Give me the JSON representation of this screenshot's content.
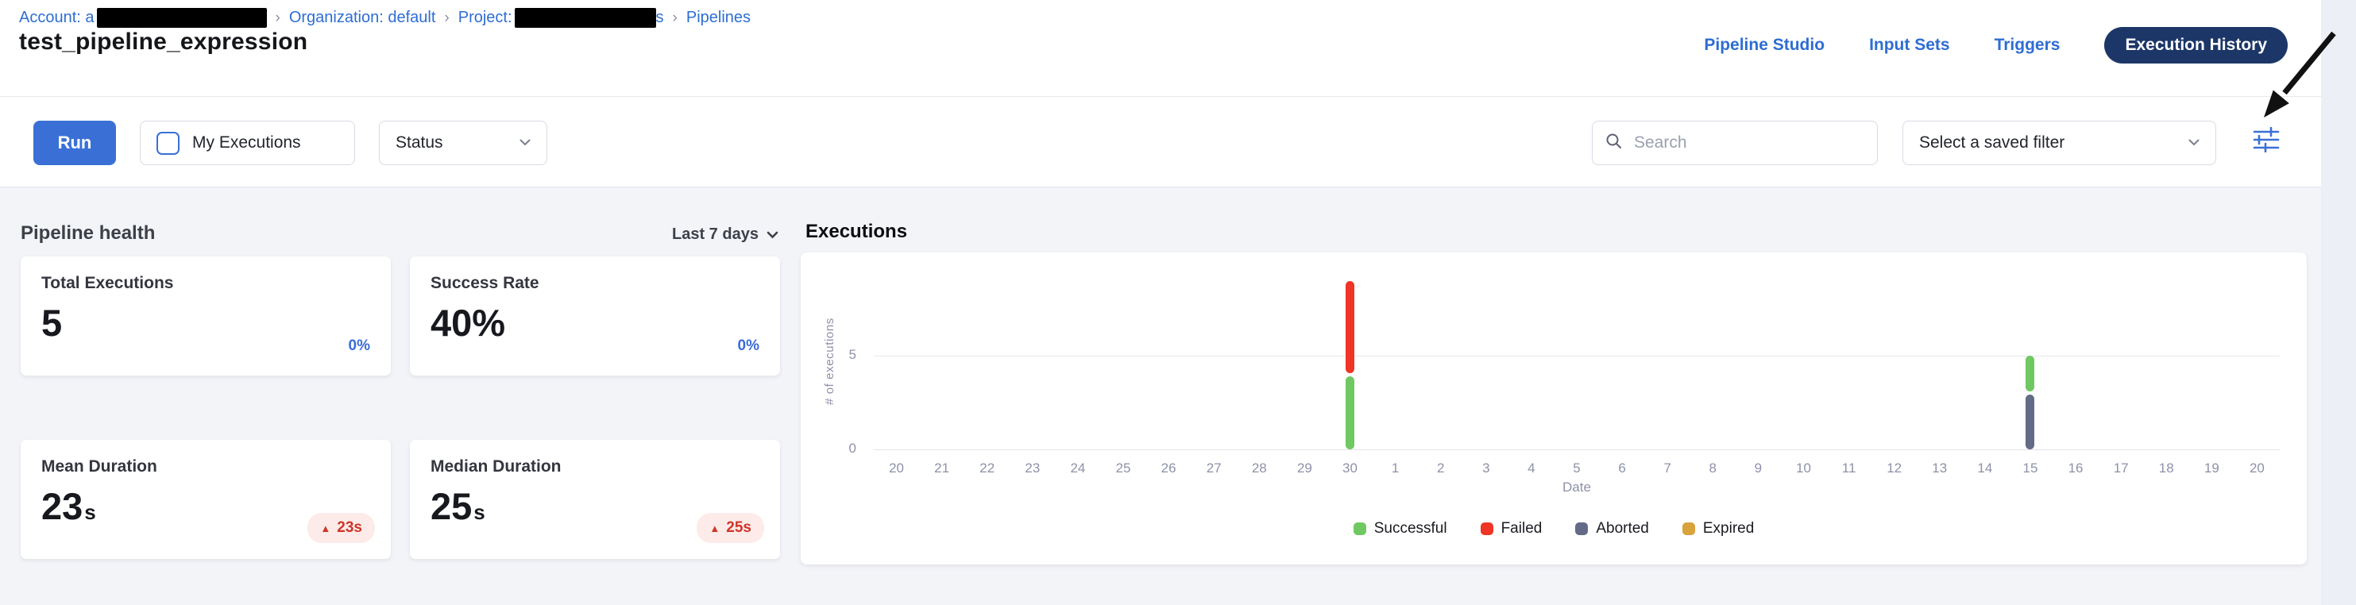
{
  "breadcrumb": {
    "separator": "›",
    "items": [
      {
        "label": "Account: a",
        "redacted_width": 214
      },
      {
        "label": "Organization: default"
      },
      {
        "label": "Project:",
        "redacted_width": 178,
        "redacted_suffix": "s"
      },
      {
        "label": "Pipelines"
      }
    ]
  },
  "header": {
    "title": "test_pipeline_expression",
    "nav": [
      {
        "label": "Pipeline Studio",
        "active": false
      },
      {
        "label": "Input Sets",
        "active": false
      },
      {
        "label": "Triggers",
        "active": false
      },
      {
        "label": "Execution History",
        "active": true
      }
    ]
  },
  "toolbar": {
    "run_label": "Run",
    "my_executions_label": "My Executions",
    "my_executions_checked": false,
    "status_label": "Status",
    "search_placeholder": "Search",
    "saved_filter_placeholder": "Select a saved filter"
  },
  "annotation": {
    "type": "hand-drawn-arrow",
    "color": "#111111",
    "points_to": "filter-sliders-button"
  },
  "pipeline_health": {
    "title": "Pipeline health",
    "range_label": "Last 7 days",
    "cards": [
      {
        "id": "total-executions",
        "label": "Total Executions",
        "value": "5",
        "suffix": "",
        "delta": "0%",
        "delta_style": "blue"
      },
      {
        "id": "success-rate",
        "label": "Success Rate",
        "value": "40%",
        "suffix": "",
        "delta": "0%",
        "delta_style": "blue"
      },
      {
        "id": "mean-duration",
        "label": "Mean Duration",
        "value": "23",
        "suffix": "s",
        "delta": "23s",
        "delta_style": "red-up-badge"
      },
      {
        "id": "median-duration",
        "label": "Median Duration",
        "value": "25",
        "suffix": "s",
        "delta": "25s",
        "delta_style": "red-up-badge"
      }
    ]
  },
  "executions_section": {
    "title": "Executions"
  },
  "chart_data": {
    "type": "bar",
    "stacked": true,
    "title": "Executions",
    "xlabel": "Date",
    "ylabel": "# of executions",
    "ylim": [
      0,
      9.6
    ],
    "yticks": [
      0,
      5
    ],
    "grid": "horizontal",
    "legend_position": "bottom-center",
    "categories": [
      "20",
      "21",
      "22",
      "23",
      "24",
      "25",
      "26",
      "27",
      "28",
      "29",
      "30",
      "1",
      "2",
      "3",
      "4",
      "5",
      "6",
      "7",
      "8",
      "9",
      "10",
      "11",
      "12",
      "13",
      "14",
      "15",
      "16",
      "17",
      "18",
      "19",
      "20"
    ],
    "series": [
      {
        "name": "Successful",
        "color": "#70c862",
        "values": [
          0,
          0,
          0,
          0,
          0,
          0,
          0,
          0,
          0,
          0,
          4,
          0,
          0,
          0,
          0,
          0,
          0,
          0,
          0,
          0,
          0,
          0,
          0,
          0,
          0,
          2,
          0,
          0,
          0,
          0,
          0
        ]
      },
      {
        "name": "Failed",
        "color": "#ee3526",
        "values": [
          0,
          0,
          0,
          0,
          0,
          0,
          0,
          0,
          0,
          0,
          5,
          0,
          0,
          0,
          0,
          0,
          0,
          0,
          0,
          0,
          0,
          0,
          0,
          0,
          0,
          0,
          0,
          0,
          0,
          0,
          0
        ]
      },
      {
        "name": "Aborted",
        "color": "#636b86",
        "values": [
          0,
          0,
          0,
          0,
          0,
          0,
          0,
          0,
          0,
          0,
          0,
          0,
          0,
          0,
          0,
          0,
          0,
          0,
          0,
          0,
          0,
          0,
          0,
          0,
          0,
          3,
          0,
          0,
          0,
          0,
          0
        ]
      },
      {
        "name": "Expired",
        "color": "#d9a23b",
        "values": [
          0,
          0,
          0,
          0,
          0,
          0,
          0,
          0,
          0,
          0,
          0,
          0,
          0,
          0,
          0,
          0,
          0,
          0,
          0,
          0,
          0,
          0,
          0,
          0,
          0,
          0,
          0,
          0,
          0,
          0,
          0
        ]
      }
    ],
    "bars": [
      {
        "category": "30",
        "category_index": 10,
        "segments": [
          {
            "series": "Successful",
            "from": 0,
            "to": 4
          },
          {
            "series": "Failed",
            "from": 4,
            "to": 9
          }
        ]
      },
      {
        "category": "15",
        "category_index": 25,
        "segments": [
          {
            "series": "Aborted",
            "from": 0,
            "to": 3
          },
          {
            "series": "Successful",
            "from": 3,
            "to": 5
          }
        ]
      }
    ]
  },
  "colors": {
    "link_blue": "#2e6dd3",
    "primary_button_blue": "#3a70d6",
    "active_pill_navy": "#1c3668",
    "delta_blue": "#3a6bd8",
    "badge_red_bg": "#fcebe9",
    "badge_red_text": "#cf3527",
    "axis_text": "#8e91a9",
    "grid_line": "#e8e9f0"
  }
}
